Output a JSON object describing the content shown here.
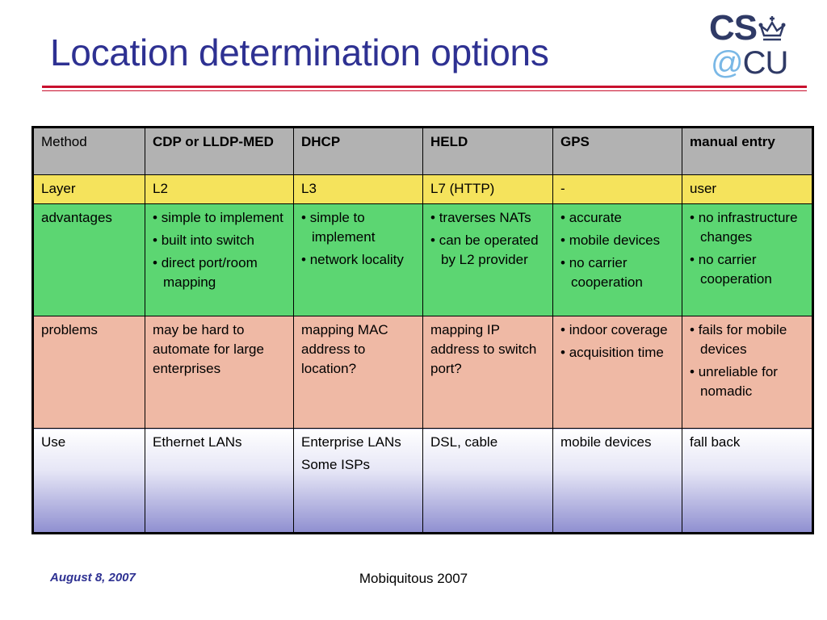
{
  "slide": {
    "title": "Location determination options",
    "logo": {
      "line1": "CS",
      "line2_at": "@",
      "line2": "CU"
    },
    "footer": {
      "date": "August 8, 2007",
      "center": "Mobiquitous 2007"
    }
  },
  "colors": {
    "title": "#2e3192",
    "rule": "#c8102e",
    "header_row": "#b2b2b2",
    "layer_row": "#f5e35c",
    "advantages_row": "#5cd672",
    "problems_row": "#efb9a5",
    "use_row_gradient_end": "#8f8fd0"
  },
  "table": {
    "headers": [
      "Method",
      "CDP or LLDP-MED",
      "DHCP",
      "HELD",
      "GPS",
      "manual entry"
    ],
    "layer": [
      "Layer",
      "L2",
      "L3",
      "L7 (HTTP)",
      "-",
      "user"
    ],
    "advantages": {
      "label": "advantages",
      "cells": [
        [
          "simple to implement",
          "built into switch",
          "direct port/room mapping"
        ],
        [
          "simple to implement",
          "network locality"
        ],
        [
          "traverses NATs",
          "can be operated by L2 provider"
        ],
        [
          "accurate",
          "mobile devices",
          "no carrier cooperation"
        ],
        [
          "no infrastructure changes",
          "no carrier cooperation"
        ]
      ]
    },
    "problems": {
      "label": "problems",
      "cells": [
        "may be hard to automate for large enterprises",
        "mapping MAC address to location?",
        "mapping IP address to switch port?",
        [
          "indoor coverage",
          "acquisition time"
        ],
        [
          "fails for mobile devices",
          "unreliable for nomadic"
        ]
      ]
    },
    "use": {
      "label": "Use",
      "cells": [
        [
          "Ethernet LANs"
        ],
        [
          "Enterprise LANs",
          "Some ISPs"
        ],
        [
          "DSL, cable"
        ],
        [
          "mobile devices"
        ],
        [
          "fall back"
        ]
      ]
    }
  }
}
